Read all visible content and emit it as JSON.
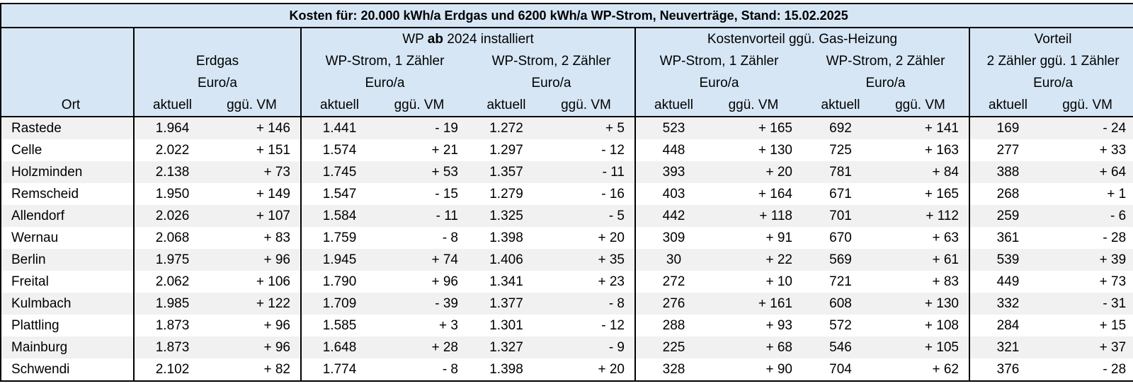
{
  "title": "Kosten für: 20.000 kWh/a Erdgas und 6200 kWh/a WP-Strom, Neuverträge, Stand: 15.02.2025",
  "headers": {
    "group_wp_pre": "WP ",
    "group_wp_bold": "ab",
    "group_wp_post": " 2024 installiert",
    "group_vorteil": "Kostenvorteil ggü. Gas-Heizung",
    "group_2z": "Vorteil",
    "group_2z_sub": "2 Zähler ggü. 1 Zähler",
    "erdgas": "Erdgas",
    "wp1": "WP-Strom, 1 Zähler",
    "wp2": "WP-Strom, 2 Zähler",
    "kv1": "WP-Strom, 1 Zähler",
    "kv2": "WP-Strom, 2 Zähler",
    "unit": "Euro/a",
    "ort": "Ort",
    "aktuell": "aktuell",
    "vm": "ggü. VM"
  },
  "rows": [
    {
      "ort": "Rastede",
      "v": [
        "1.964",
        "+ 146",
        "1.441",
        "- 19",
        "1.272",
        "+ 5",
        "523",
        "+ 165",
        "692",
        "+ 141",
        "169",
        "- 24"
      ]
    },
    {
      "ort": "Celle",
      "v": [
        "2.022",
        "+ 151",
        "1.574",
        "+ 21",
        "1.297",
        "- 12",
        "448",
        "+ 130",
        "725",
        "+ 163",
        "277",
        "+ 33"
      ]
    },
    {
      "ort": "Holzminden",
      "v": [
        "2.138",
        "+ 73",
        "1.745",
        "+ 53",
        "1.357",
        "- 11",
        "393",
        "+ 20",
        "781",
        "+ 84",
        "388",
        "+ 64"
      ]
    },
    {
      "ort": "Remscheid",
      "v": [
        "1.950",
        "+ 149",
        "1.547",
        "- 15",
        "1.279",
        "- 16",
        "403",
        "+ 164",
        "671",
        "+ 165",
        "268",
        "+ 1"
      ]
    },
    {
      "ort": "Allendorf",
      "v": [
        "2.026",
        "+ 107",
        "1.584",
        "- 11",
        "1.325",
        "- 5",
        "442",
        "+ 118",
        "701",
        "+ 112",
        "259",
        "- 6"
      ]
    },
    {
      "ort": "Wernau",
      "v": [
        "2.068",
        "+ 83",
        "1.759",
        "- 8",
        "1.398",
        "+ 20",
        "309",
        "+ 91",
        "670",
        "+ 63",
        "361",
        "- 28"
      ]
    },
    {
      "ort": "Berlin",
      "v": [
        "1.975",
        "+ 96",
        "1.945",
        "+ 74",
        "1.406",
        "+ 35",
        "30",
        "+ 22",
        "569",
        "+ 61",
        "539",
        "+ 39"
      ]
    },
    {
      "ort": "Freital",
      "v": [
        "2.062",
        "+ 106",
        "1.790",
        "+ 96",
        "1.341",
        "+ 23",
        "272",
        "+ 10",
        "721",
        "+ 83",
        "449",
        "+ 73"
      ]
    },
    {
      "ort": "Kulmbach",
      "v": [
        "1.985",
        "+ 122",
        "1.709",
        "- 39",
        "1.377",
        "- 8",
        "276",
        "+ 161",
        "608",
        "+ 130",
        "332",
        "- 31"
      ]
    },
    {
      "ort": "Plattling",
      "v": [
        "1.873",
        "+ 96",
        "1.585",
        "+ 3",
        "1.301",
        "- 12",
        "288",
        "+ 93",
        "572",
        "+ 108",
        "284",
        "+ 15"
      ]
    },
    {
      "ort": "Mainburg",
      "v": [
        "1.873",
        "+ 96",
        "1.648",
        "+ 28",
        "1.327",
        "- 9",
        "225",
        "+ 68",
        "546",
        "+ 105",
        "321",
        "+ 37"
      ]
    },
    {
      "ort": "Schwendi",
      "v": [
        "2.102",
        "+ 82",
        "1.774",
        "- 8",
        "1.398",
        "+ 20",
        "328",
        "+ 90",
        "704",
        "+ 62",
        "376",
        "- 28"
      ]
    }
  ]
}
